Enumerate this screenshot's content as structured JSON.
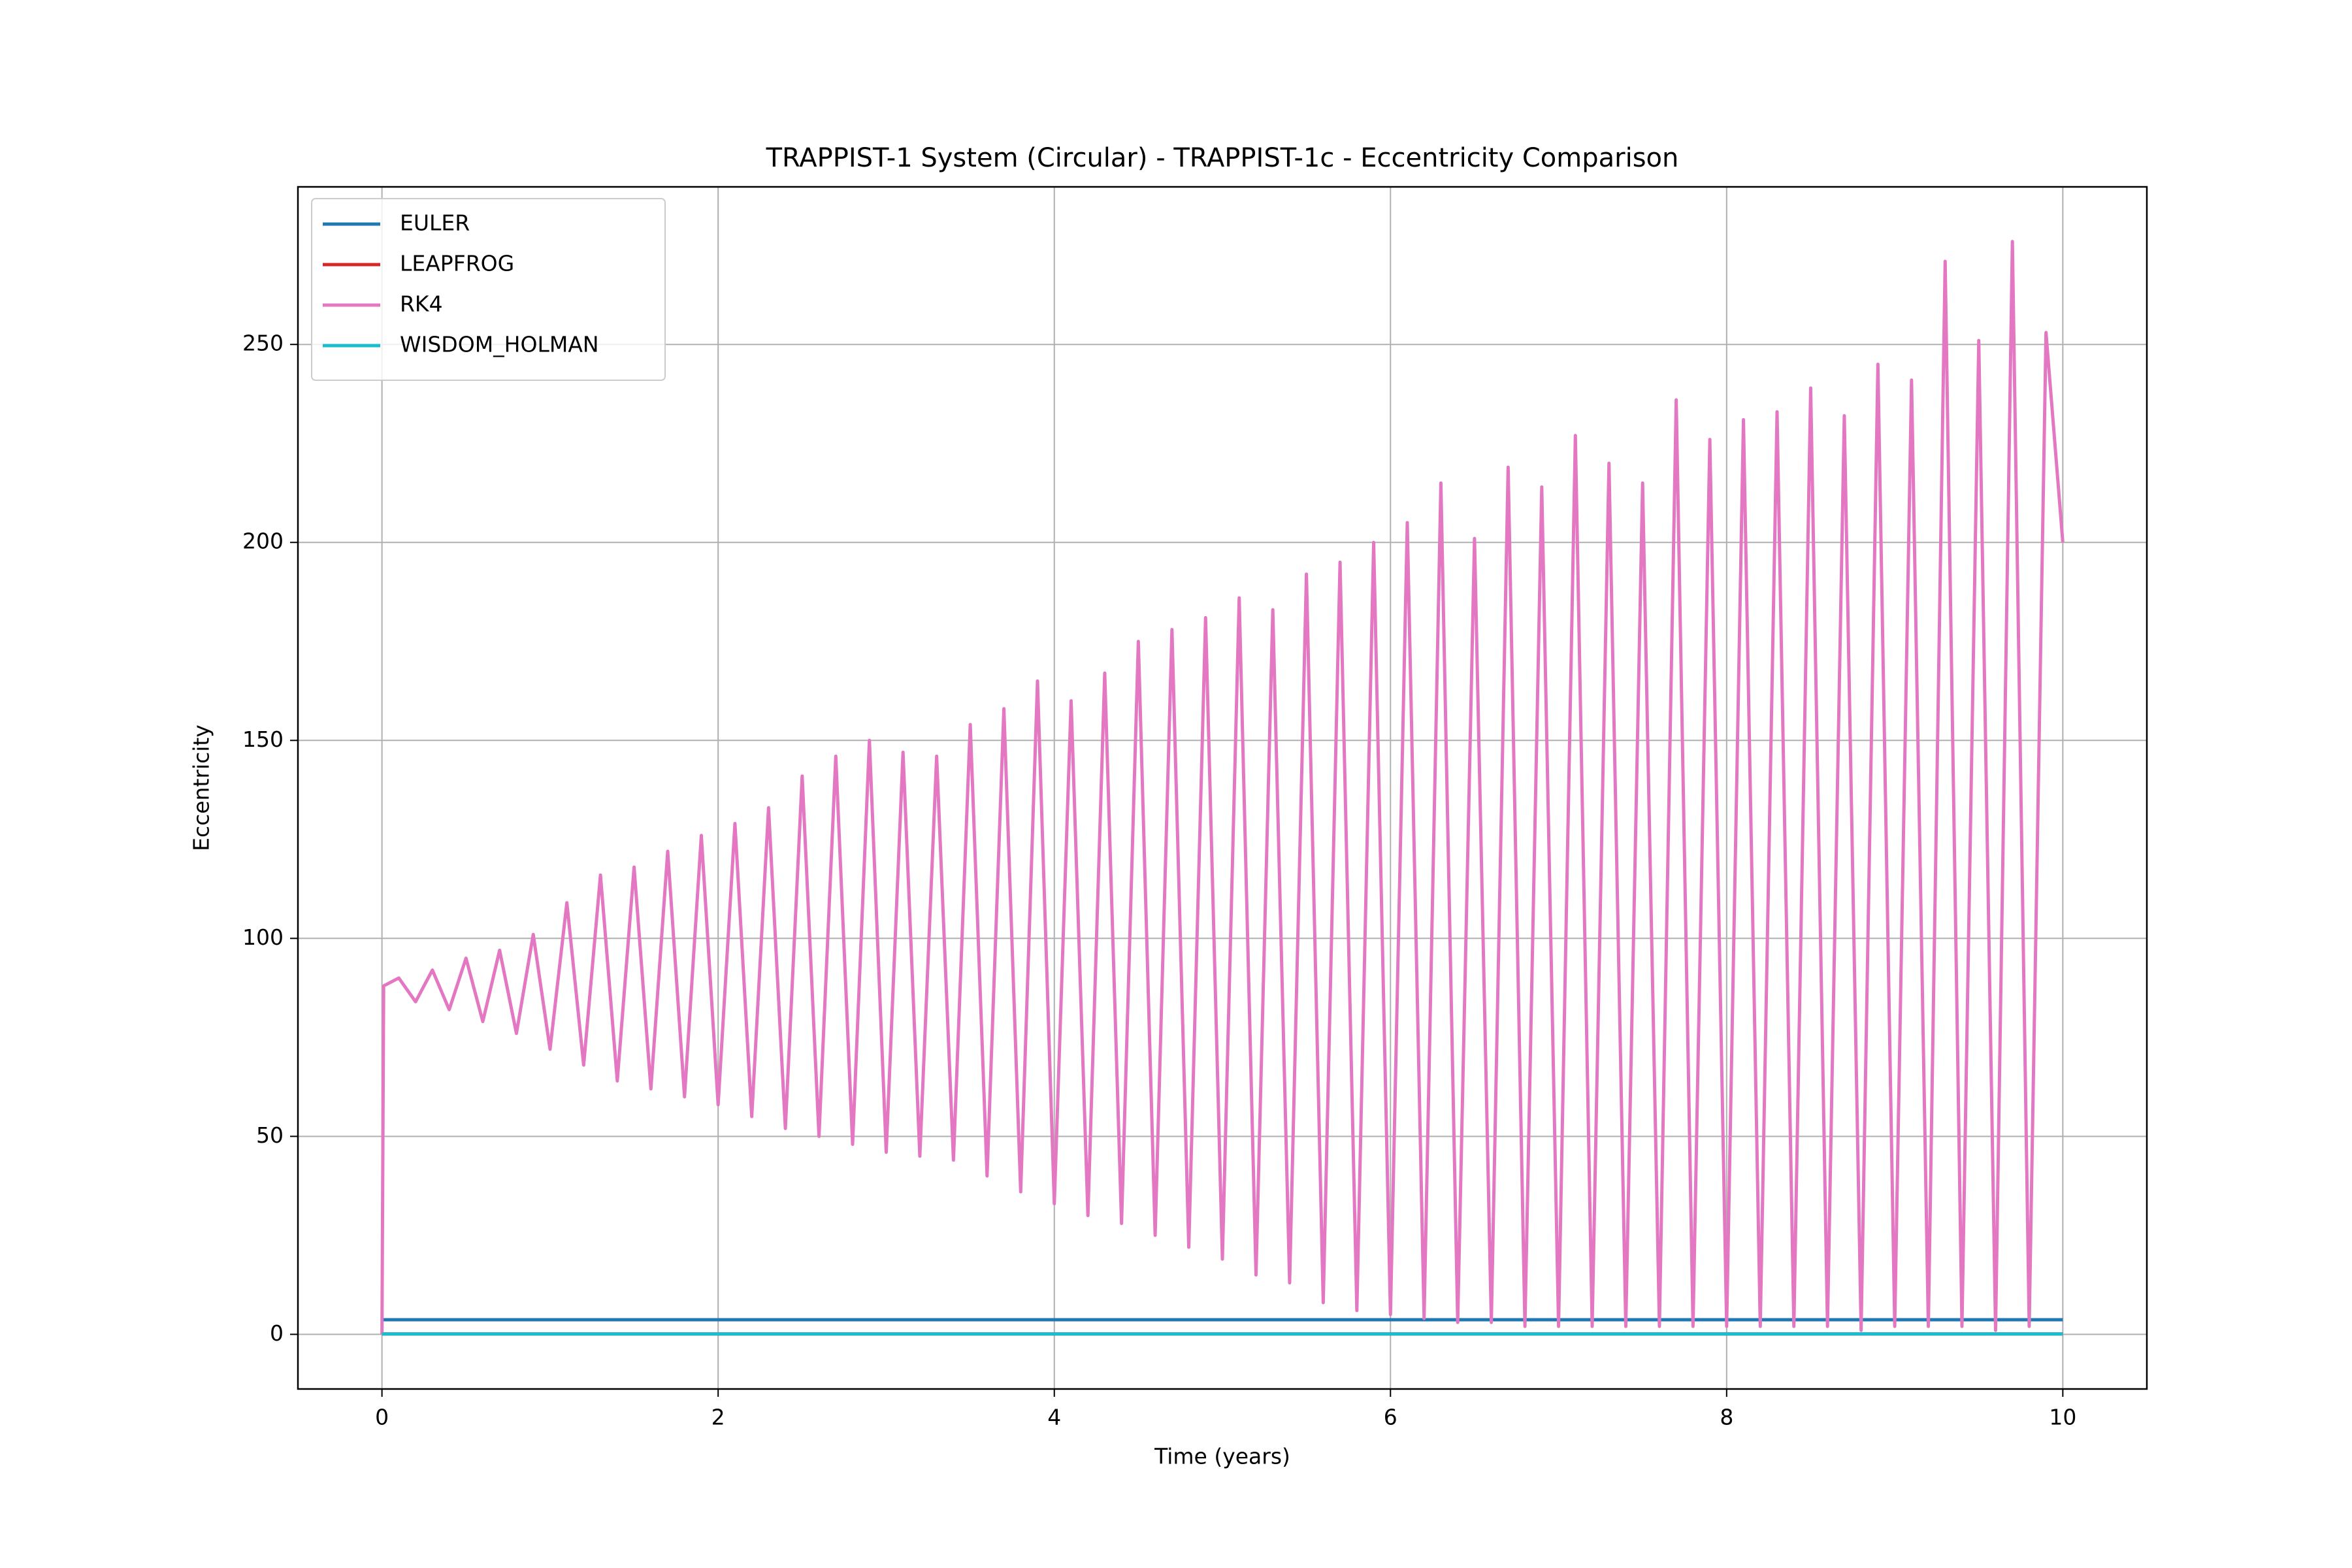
{
  "chart_data": {
    "type": "line",
    "title": "TRAPPIST-1 System (Circular) - TRAPPIST-1c - Eccentricity Comparison",
    "x_label": "Time (years)",
    "y_label": "Eccentricity",
    "xlim": [
      -0.5,
      10.5
    ],
    "xticks": [
      0,
      2,
      4,
      6,
      8,
      10
    ],
    "ylim": [
      -13.8,
      289.8
    ],
    "yticks": [
      0,
      50,
      100,
      150,
      200,
      250
    ],
    "grid": true,
    "legend": "upper-left",
    "series": [
      {
        "name": "EULER",
        "color": "#1f77b4",
        "x": [
          0,
          10
        ],
        "values": [
          3.7,
          3.7
        ]
      },
      {
        "name": "LEAPFROG",
        "color": "#d62728",
        "x": [
          0,
          10
        ],
        "values": [
          0.1,
          0.1
        ]
      },
      {
        "name": "RK4",
        "color": "#e377c2",
        "x": [
          0,
          0.01,
          0.1,
          0.2,
          0.3,
          0.4,
          0.5,
          0.6,
          0.7,
          0.8,
          0.9,
          1.0,
          1.1,
          1.2,
          1.3,
          1.4,
          1.5,
          1.6,
          1.7,
          1.8,
          1.9,
          2.0,
          2.1,
          2.2,
          2.3,
          2.4,
          2.5,
          2.6,
          2.7,
          2.8,
          2.9,
          3.0,
          3.1,
          3.2,
          3.3,
          3.4,
          3.5,
          3.6,
          3.7,
          3.8,
          3.9,
          4.0,
          4.1,
          4.2,
          4.3,
          4.4,
          4.5,
          4.6,
          4.7,
          4.8,
          4.9,
          5.0,
          5.1,
          5.2,
          5.3,
          5.4,
          5.5,
          5.6,
          5.7,
          5.8,
          5.9,
          6.0,
          6.1,
          6.2,
          6.3,
          6.4,
          6.5,
          6.6,
          6.7,
          6.8,
          6.9,
          7.0,
          7.1,
          7.2,
          7.3,
          7.4,
          7.5,
          7.6,
          7.7,
          7.8,
          7.9,
          8.0,
          8.1,
          8.2,
          8.3,
          8.4,
          8.5,
          8.6,
          8.7,
          8.8,
          8.9,
          9.0,
          9.1,
          9.2,
          9.3,
          9.4,
          9.5,
          9.6,
          9.7,
          9.8,
          9.9,
          10.0
        ],
        "values": [
          0,
          88,
          90,
          84,
          92,
          82,
          95,
          79,
          97,
          76,
          101,
          72,
          109,
          68,
          116,
          64,
          118,
          62,
          122,
          60,
          126,
          58,
          129,
          55,
          133,
          52,
          141,
          50,
          146,
          48,
          150,
          46,
          147,
          45,
          146,
          44,
          154,
          40,
          158,
          36,
          165,
          33,
          160,
          30,
          167,
          28,
          175,
          25,
          178,
          22,
          181,
          19,
          186,
          15,
          183,
          13,
          192,
          8,
          195,
          6,
          200,
          5,
          205,
          4,
          215,
          3,
          201,
          3,
          219,
          2,
          214,
          2,
          227,
          2,
          220,
          2,
          215,
          2,
          236,
          2,
          226,
          2,
          231,
          2,
          233,
          2,
          239,
          2,
          232,
          1,
          245,
          2,
          241,
          2,
          271,
          2,
          251,
          1,
          276,
          2,
          253,
          200
        ]
      },
      {
        "name": "WISDOM_HOLMAN",
        "color": "#17becf",
        "x": [
          0,
          10
        ],
        "values": [
          0.1,
          0.1
        ]
      }
    ]
  }
}
